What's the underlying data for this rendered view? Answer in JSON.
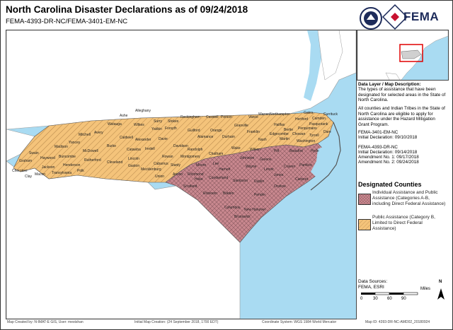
{
  "header": {
    "title": "North Carolina Disaster Declarations as of 09/24/2018",
    "subtitle": "FEMA-4393-DR-NC/FEMA-3401-EM-NC",
    "fema_logo_text": "FEMA"
  },
  "data_layer": {
    "heading": "Data Layer / Map Description:",
    "paragraph1": "The types of assistance that have been designated for selected areas in the State of North Carolina.",
    "paragraph2": "All counties and Indian Tribes in the State of North Carolina are eligible to apply for assistance under the Hazard Mitigation Grant Program.",
    "em_decl": [
      "FEMA-3401-EM-NC",
      "Initial Declaration: 09/10/2018"
    ],
    "dr_decl": [
      "FEMA-4393-DR-NC",
      "Initial Declaration: 09/14/2018",
      "Amendment No. 1: 09/17/2018",
      "Amendment No. 2: 09/24/2018"
    ]
  },
  "legend": {
    "title": "Designated Counties",
    "items": [
      {
        "label": "Individual Assistance and Public Assistance (Categories A-B, including Direct Federal Assistance)",
        "color": "#c9888f"
      },
      {
        "label": "Public Assistance (Category B, Limited to Direct Federal Assistance)",
        "color": "#f4c37a"
      }
    ]
  },
  "scale": {
    "unit": "Miles",
    "ticks": [
      "0",
      "30",
      "60",
      "90"
    ],
    "north": "N"
  },
  "sources": {
    "heading": "Data Sources:",
    "value": "FEMA, ESRI"
  },
  "footer": {
    "created_by": "Map Created by: N-IMAT-E GIS, User: mestshan",
    "initial_creation": "Initial Map Creation: (24 September 2018, 1700 EDT)",
    "coordinate_system": "Coordinate System: WGS 1984 World Mercator",
    "map_id": "Map ID: 4393-DR-NC-AMD02_20180924"
  },
  "counties": {
    "pa": [
      "Alleghany",
      "Surry",
      "Stokes",
      "Rockingham",
      "Caswell",
      "Person",
      "Granville",
      "Vance",
      "Warren",
      "Northampton",
      "Hertford",
      "Gates",
      "Ashe",
      "Wilkes",
      "Watauga",
      "Yadkin",
      "Forsyth",
      "Guilford",
      "Orange",
      "Durham",
      "Franklin",
      "Nash",
      "Halifax",
      "Avery",
      "Caldwell",
      "Alexander",
      "Iredell",
      "Davie",
      "Davidson",
      "Randolph",
      "Chatham",
      "Wake",
      "Mitchell",
      "Burke",
      "Catawba",
      "Rowan",
      "Yancey",
      "Madison",
      "McDowell",
      "Buncombe",
      "Rutherford",
      "Cleveland",
      "Gaston",
      "Lincoln",
      "Haywood",
      "Henderson",
      "Polk",
      "Mecklenburg",
      "Cabarrus",
      "Stanly",
      "Montgomery",
      "Union",
      "Anson",
      "Swain",
      "Jackson",
      "Transylvania",
      "Macon",
      "Clay",
      "Cherokee",
      "Graham",
      "Currituck",
      "Camden",
      "Pasquotank",
      "Perquimans",
      "Chowan",
      "Bertie",
      "Martin",
      "Washington",
      "Tyrrell",
      "Dare",
      "Alamance",
      "Lee",
      "Moore",
      "Johnston",
      "Edgecombe"
    ],
    "ia": [
      "Wilson",
      "Harnett",
      "Wayne",
      "Greene",
      "Pitt",
      "Beaufort",
      "Hyde",
      "Craven",
      "Lenoir",
      "Jones",
      "Pamlico",
      "Carteret",
      "Onslow",
      "Duplin",
      "Sampson",
      "Cumberland",
      "Hoke",
      "Scotland",
      "Robeson",
      "Bladen",
      "Pender",
      "Columbus",
      "Brunswick",
      "New Hanover",
      "Richmond"
    ]
  }
}
